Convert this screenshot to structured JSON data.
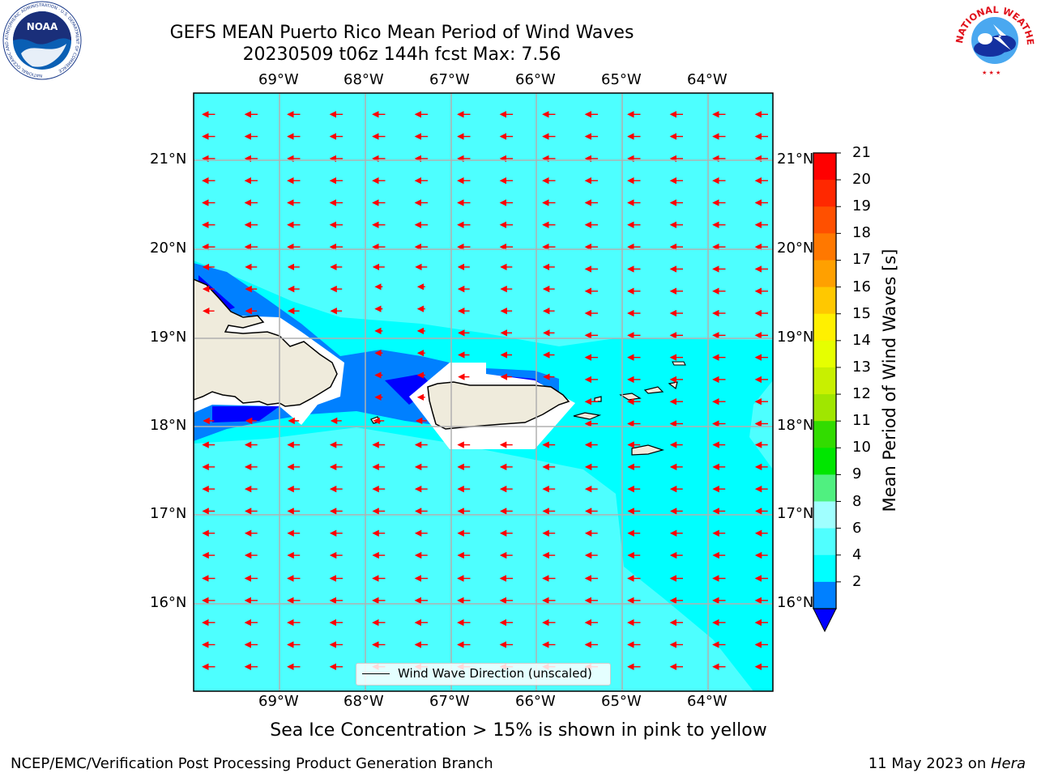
{
  "header": {
    "title_line1": "GEFS MEAN Puerto Rico Mean Period of Wind Waves",
    "title_line2": "20230509 t06z 144h fcst   Max: 7.56"
  },
  "map": {
    "lon_labels": [
      "69°W",
      "68°W",
      "67°W",
      "66°W",
      "65°W",
      "64°W"
    ],
    "lat_labels": [
      "21°N",
      "20°N",
      "19°N",
      "18°N",
      "17°N",
      "16°N"
    ],
    "ocean_color": "#00ffff",
    "land_color": "#efebdc",
    "arrow_color": "#ff0000",
    "grid": true,
    "legend_text": "Wind Wave Direction (unscaled)"
  },
  "colorbar": {
    "label": "Mean Period of Wind Waves [s]",
    "ticks": [
      "21",
      "20",
      "19",
      "18",
      "17",
      "16",
      "15",
      "14",
      "13",
      "12",
      "11",
      "10",
      "9",
      "8",
      "6",
      "4",
      "2"
    ],
    "colors_top_to_bottom": [
      "#ff0000",
      "#ff2800",
      "#ff5000",
      "#ff7800",
      "#ffa000",
      "#ffc800",
      "#fff000",
      "#e6ff00",
      "#c8f000",
      "#a0e600",
      "#32dc00",
      "#00e600",
      "#50f080",
      "#a0ffff",
      "#50ffff",
      "#00ffff",
      "#0080ff"
    ],
    "under_color": "#0000ff"
  },
  "footer": {
    "sea_ice_note": "Sea Ice Concentration > 15% is shown in pink to yellow",
    "credit_left": "NCEP/EMC/Verification Post Processing Product Generation Branch",
    "credit_right_date": "11 May 2023 on ",
    "credit_right_host": "Hera"
  },
  "logos": {
    "noaa_text": "NOAA",
    "noaa_ring": "NATIONAL OCEANIC AND ATMOSPHERIC ADMINISTRATION · U.S. DEPARTMENT OF COMMERCE",
    "nws_ring": "NATIONAL WEATHER SERVICE"
  }
}
